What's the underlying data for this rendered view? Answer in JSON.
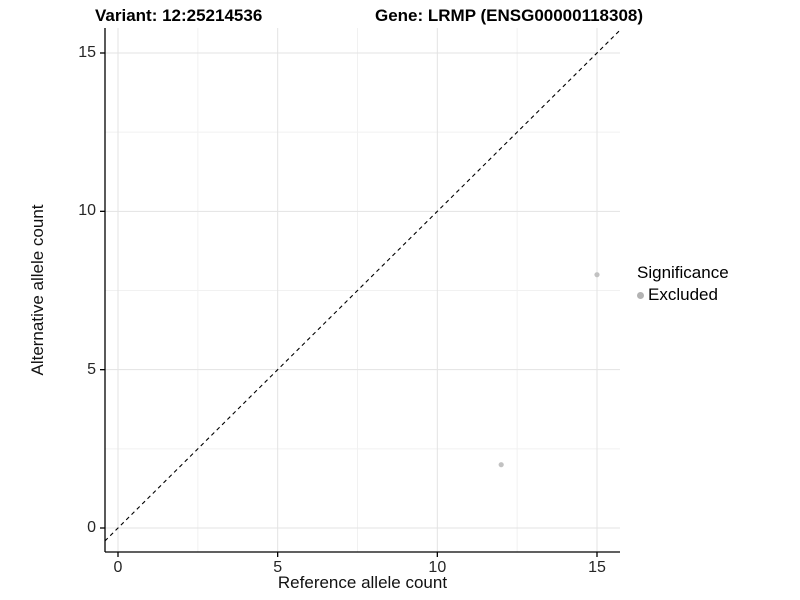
{
  "chart_data": {
    "type": "scatter",
    "title_left": "Variant: 12:25214536",
    "title_right": "Gene: LRMP (ENSG00000118308)",
    "xlabel": "Reference allele count",
    "ylabel": "Alternative allele count",
    "x_ticks": [
      0,
      5,
      10,
      15
    ],
    "y_ticks": [
      0,
      5,
      10,
      15
    ],
    "x_minor_ticks": [
      2.5,
      7.5,
      12.5
    ],
    "y_minor_ticks": [
      2.5,
      7.5,
      12.5
    ],
    "xlim": [
      -0.41,
      15.72
    ],
    "ylim": [
      -0.76,
      15.79
    ],
    "grid": true,
    "reference_line": {
      "kind": "identity",
      "style": "dashed",
      "color": "#000000"
    },
    "series": [
      {
        "name": "Excluded",
        "color": "#c2c2c2",
        "points": [
          {
            "x": 12,
            "y": 2
          },
          {
            "x": 15,
            "y": 8
          }
        ]
      }
    ],
    "legend": {
      "title": "Significance",
      "position": "right",
      "entries": [
        {
          "label": "Excluded",
          "color": "#b3b3b3"
        }
      ]
    },
    "colors": {
      "axis_line": "#000000",
      "tick_mark": "#000000",
      "grid_major": "#e3e3e3",
      "grid_minor": "#f1f1f1",
      "panel_background": "#ffffff",
      "text": "#000000"
    }
  }
}
